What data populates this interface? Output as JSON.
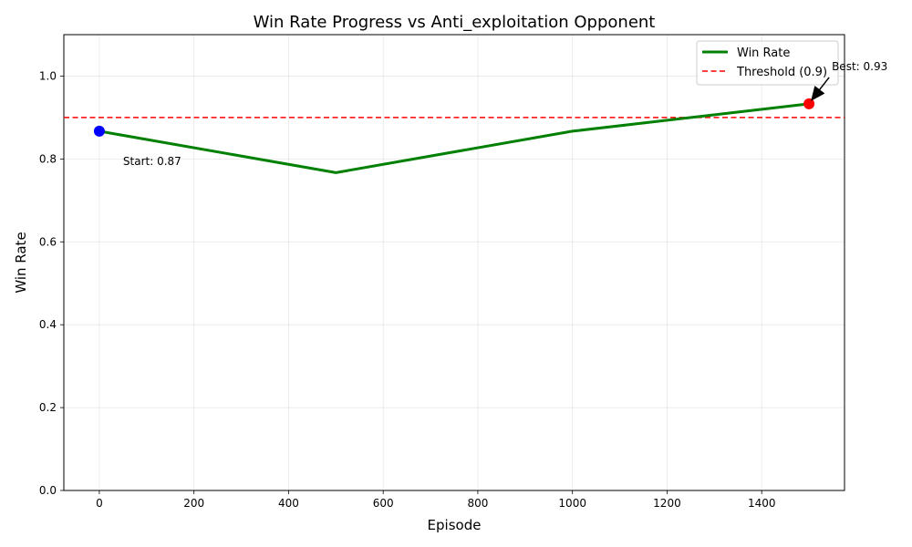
{
  "chart_data": {
    "type": "line",
    "title": "Win Rate Progress vs Anti_exploitation Opponent",
    "xlabel": "Episode",
    "ylabel": "Win Rate",
    "xlim": [
      -75,
      1575
    ],
    "ylim": [
      0.0,
      1.1
    ],
    "xticks": [
      0,
      200,
      400,
      600,
      800,
      1000,
      1200,
      1400
    ],
    "yticks": [
      0.0,
      0.2,
      0.4,
      0.6,
      0.8,
      1.0
    ],
    "xtick_labels": [
      "0",
      "200",
      "400",
      "600",
      "800",
      "1000",
      "1200",
      "1400"
    ],
    "ytick_labels": [
      "0.0",
      "0.2",
      "0.4",
      "0.6",
      "0.8",
      "1.0"
    ],
    "grid": true,
    "legend_position": "top-right",
    "series": [
      {
        "name": "Win Rate",
        "color": "#008000",
        "x": [
          0,
          500,
          1000,
          1500
        ],
        "y": [
          0.867,
          0.767,
          0.867,
          0.933
        ]
      }
    ],
    "threshold": {
      "label": "Threshold (0.9)",
      "value": 0.9,
      "color": "#ff0000"
    },
    "markers": [
      {
        "x": 0,
        "y": 0.867,
        "color": "#0000ff"
      },
      {
        "x": 1500,
        "y": 0.933,
        "color": "#ff0000"
      }
    ],
    "annotations": {
      "start": {
        "text": "Start: 0.87",
        "x": 0,
        "y": 0.867
      },
      "best": {
        "text": "Best: 0.93",
        "x": 1500,
        "y": 0.933
      }
    }
  }
}
